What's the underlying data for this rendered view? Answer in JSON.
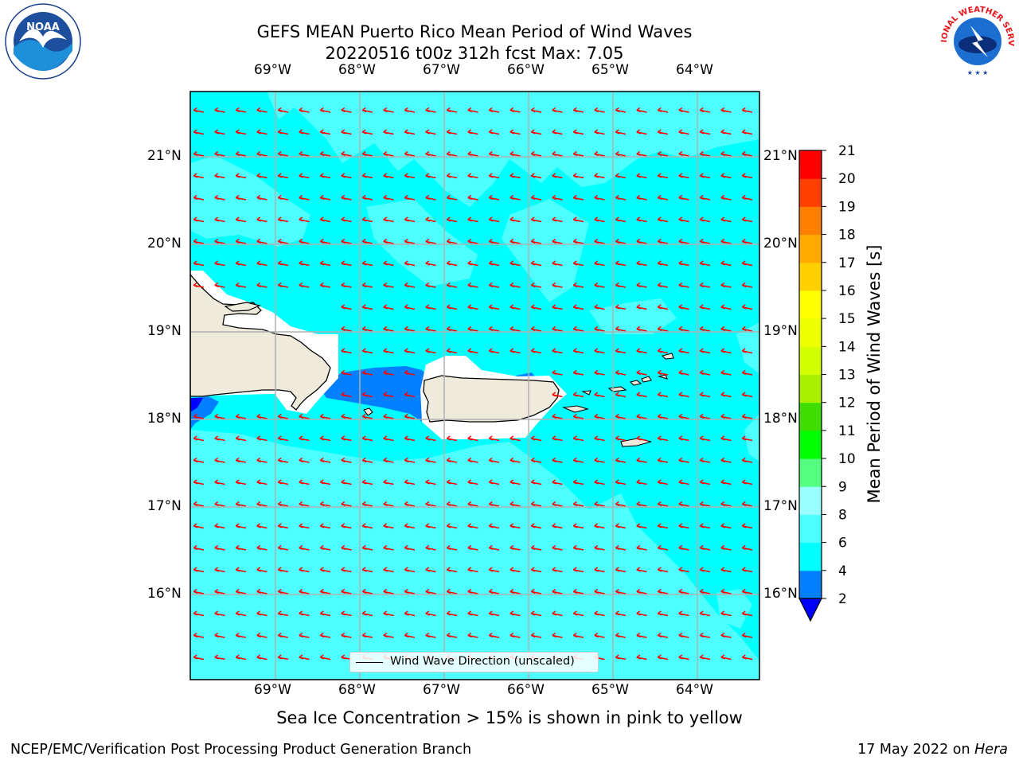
{
  "header": {
    "title_line1": "GEFS MEAN Puerto Rico Mean Period of Wind Waves",
    "title_line2": "20220516 t00z 312h fcst   Max: 7.05"
  },
  "map": {
    "lon_labels": [
      "69°W",
      "68°W",
      "67°W",
      "66°W",
      "65°W",
      "64°W"
    ],
    "lat_labels": [
      "21°N",
      "20°N",
      "19°N",
      "18°N",
      "17°N",
      "16°N"
    ],
    "ocean_color": "#00ffff",
    "light_color": "#4dffff",
    "deep_color": "#0080ff",
    "land_color": "#efebdc",
    "arrow_color": "#ff0000",
    "legend_label": "Wind Wave Direction (unscaled)"
  },
  "colorbar": {
    "label": "Mean Period of Wind Waves [s]",
    "ticks": [
      "2",
      "4",
      "6",
      "8",
      "9",
      "10",
      "11",
      "12",
      "13",
      "14",
      "15",
      "16",
      "17",
      "18",
      "19",
      "20",
      "21"
    ],
    "colors": [
      "#0000ff",
      "#0080ff",
      "#00ffff",
      "#4dffff",
      "#99ffff",
      "#55ff80",
      "#00ff00",
      "#40dd00",
      "#aaee00",
      "#d4ff00",
      "#eeff00",
      "#ffff00",
      "#ffd000",
      "#ffaa00",
      "#ff8000",
      "#ff4000",
      "#ff0000"
    ]
  },
  "caption": "Sea Ice Concentration > 15% is shown in pink to yellow",
  "footer": {
    "left": "NCEP/EMC/Verification Post Processing Product Generation Branch",
    "right_prefix": "17 May 2022 on ",
    "right_host": "Hera"
  },
  "logos": {
    "noaa_text": "NOAA",
    "nws_text": "NATIONAL WEATHER SERVICE"
  }
}
